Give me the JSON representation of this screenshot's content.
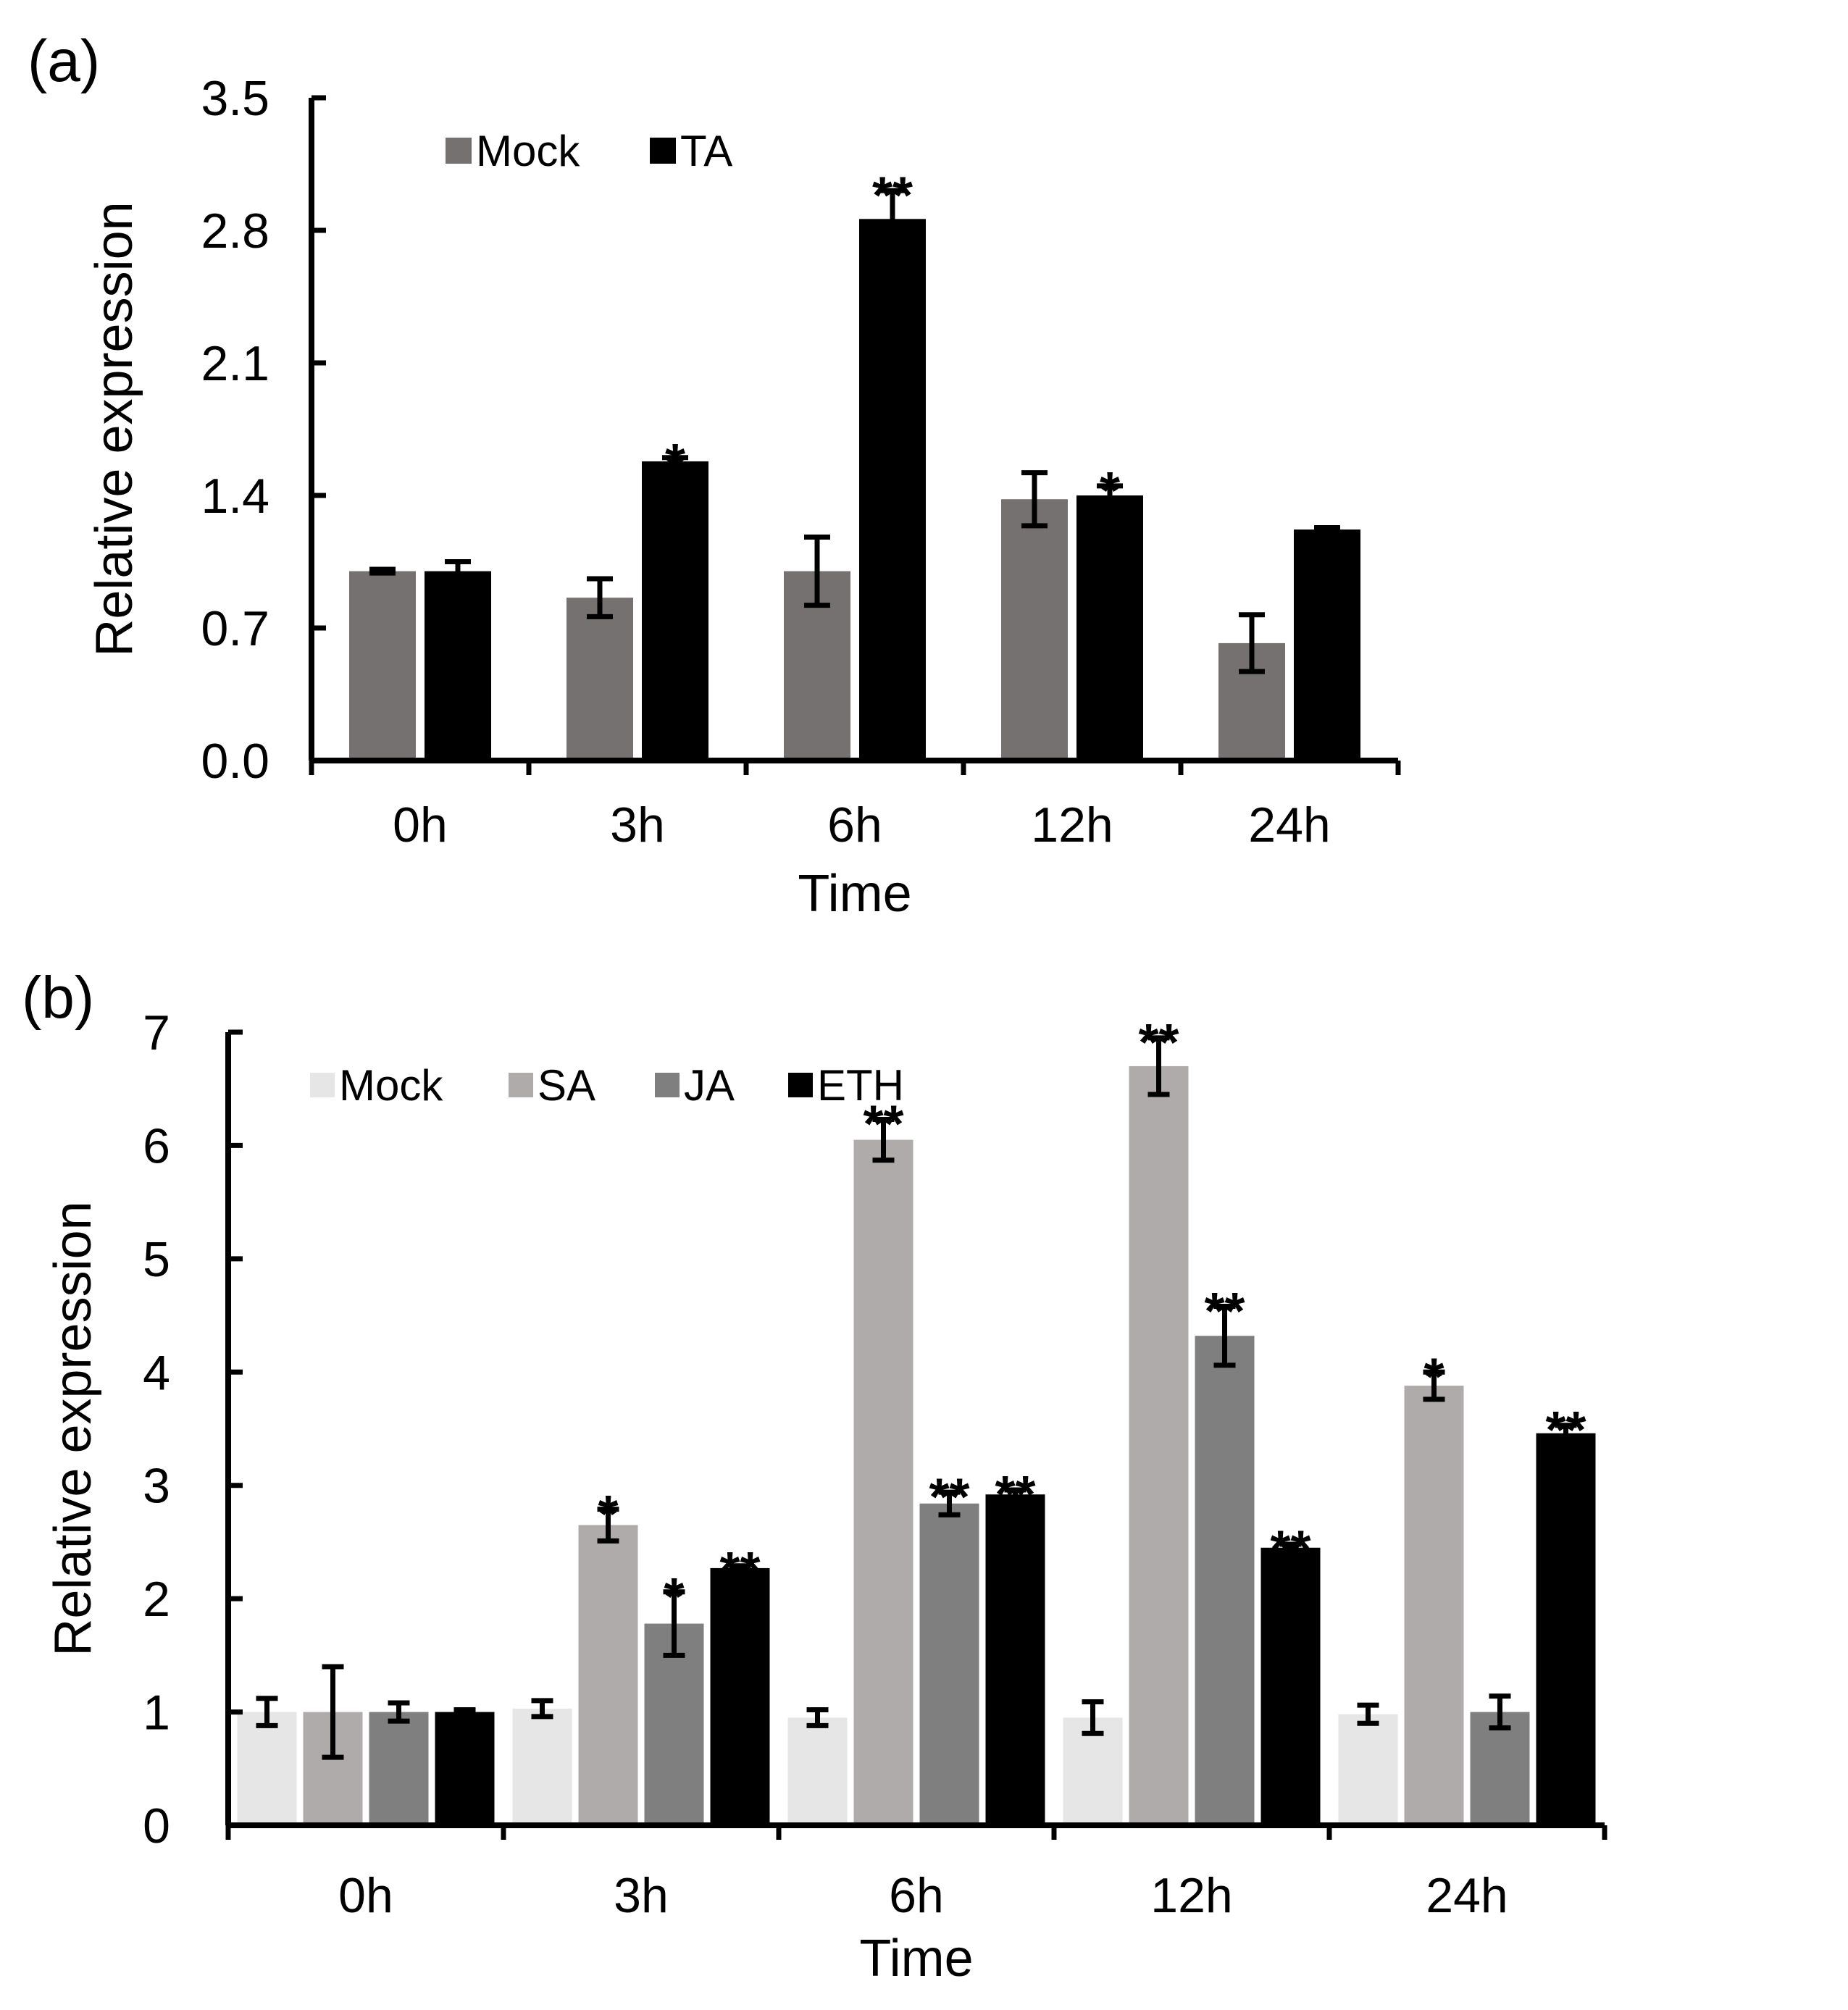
{
  "chart_data": [
    {
      "panel": "(a)",
      "type": "bar",
      "categories": [
        "0h",
        "3h",
        "6h",
        "12h",
        "24h"
      ],
      "xlabel": "Time",
      "ylabel": "Relative expression",
      "ylim": [
        0,
        3.5
      ],
      "yticks": [
        "0.0",
        "0.7",
        "1.4",
        "2.1",
        "2.8",
        "3.5"
      ],
      "legend_position": "top-left",
      "grid": false,
      "series": [
        {
          "name": "Mock",
          "color": "#767171",
          "values": [
            1.0,
            0.86,
            1.0,
            1.38,
            0.62
          ],
          "errors": [
            0.01,
            0.1,
            0.18,
            0.14,
            0.15
          ],
          "sig": [
            "",
            "",
            "",
            "",
            ""
          ]
        },
        {
          "name": "TA",
          "color": "#000000",
          "values": [
            1.0,
            1.58,
            2.86,
            1.4,
            1.22
          ],
          "errors": [
            0.05,
            0.02,
            0.15,
            0.05,
            0.01
          ],
          "sig": [
            "",
            "*",
            "**",
            "*",
            ""
          ]
        }
      ]
    },
    {
      "panel": "(b)",
      "type": "bar",
      "categories": [
        "0h",
        "3h",
        "6h",
        "12h",
        "24h"
      ],
      "xlabel": "Time",
      "ylabel": "Relative expression",
      "ylim": [
        0,
        7
      ],
      "yticks": [
        "0",
        "1",
        "2",
        "3",
        "4",
        "5",
        "6",
        "7"
      ],
      "legend_position": "top-left",
      "grid": false,
      "series": [
        {
          "name": "Mock",
          "color": "#e7e6e6",
          "values": [
            1.0,
            1.03,
            0.95,
            0.95,
            0.98
          ],
          "errors": [
            0.12,
            0.07,
            0.07,
            0.14,
            0.08
          ],
          "sig": [
            "",
            "",
            "",
            "",
            ""
          ]
        },
        {
          "name": "SA",
          "color": "#afabab",
          "values": [
            1.0,
            2.65,
            6.05,
            6.7,
            3.88
          ],
          "errors": [
            0.4,
            0.14,
            0.18,
            0.25,
            0.12
          ],
          "sig": [
            "",
            "*",
            "**",
            "**",
            "*"
          ]
        },
        {
          "name": "JA",
          "color": "#7f7f7f",
          "values": [
            1.0,
            1.78,
            2.84,
            4.32,
            1.0
          ],
          "errors": [
            0.08,
            0.28,
            0.1,
            0.26,
            0.14
          ],
          "sig": [
            "",
            "*",
            "**",
            "**",
            ""
          ]
        },
        {
          "name": "ETH",
          "color": "#000000",
          "values": [
            1.0,
            2.27,
            2.92,
            2.45,
            3.46
          ],
          "errors": [
            0.02,
            0.02,
            0.04,
            0.03,
            0.07
          ],
          "sig": [
            "",
            "**",
            "**",
            "**",
            "**"
          ]
        }
      ]
    }
  ]
}
